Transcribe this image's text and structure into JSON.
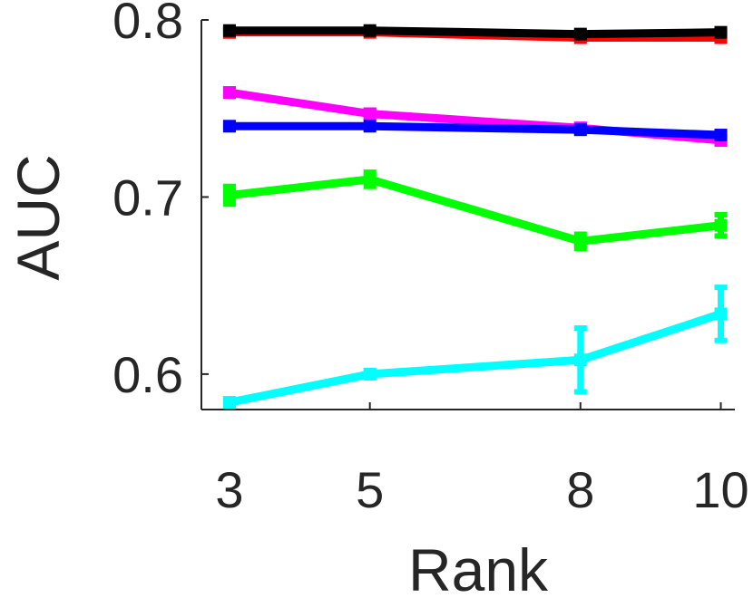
{
  "chart_data": {
    "type": "line",
    "title": "",
    "xlabel": "Rank",
    "ylabel": "AUC",
    "x": [
      3,
      5,
      8,
      10
    ],
    "xticks": [
      "3",
      "5",
      "8",
      "10"
    ],
    "yticks": [
      "0.6",
      "0.7",
      "0.8"
    ],
    "xlim": [
      2.6,
      10.2
    ],
    "ylim": [
      0.58,
      0.8
    ],
    "grid": false,
    "legend": "none",
    "series": [
      {
        "color": "#ff0000",
        "values": [
          0.793,
          0.793,
          0.79,
          0.79
        ],
        "errors": [
          0.002,
          0.001,
          0.001,
          0.002
        ]
      },
      {
        "color": "#000000",
        "values": [
          0.794,
          0.794,
          0.792,
          0.793
        ],
        "errors": [
          0.001,
          0.001,
          0.001,
          0.001
        ]
      },
      {
        "color": "#ff00ff",
        "values": [
          0.759,
          0.747,
          0.739,
          0.732
        ],
        "errors": [
          0.002,
          0.002,
          0.002,
          0.002
        ]
      },
      {
        "color": "#0000ff",
        "values": [
          0.74,
          0.74,
          0.738,
          0.735
        ],
        "errors": [
          0.001,
          0.001,
          0.001,
          0.001
        ]
      },
      {
        "color": "#00ff00",
        "values": [
          0.701,
          0.71,
          0.675,
          0.684
        ],
        "errors": [
          0.005,
          0.004,
          0.004,
          0.006
        ]
      },
      {
        "color": "#00ffff",
        "values": [
          0.584,
          0.6,
          0.608,
          0.634
        ],
        "errors": [
          0.002,
          0.002,
          0.018,
          0.015
        ]
      }
    ]
  }
}
